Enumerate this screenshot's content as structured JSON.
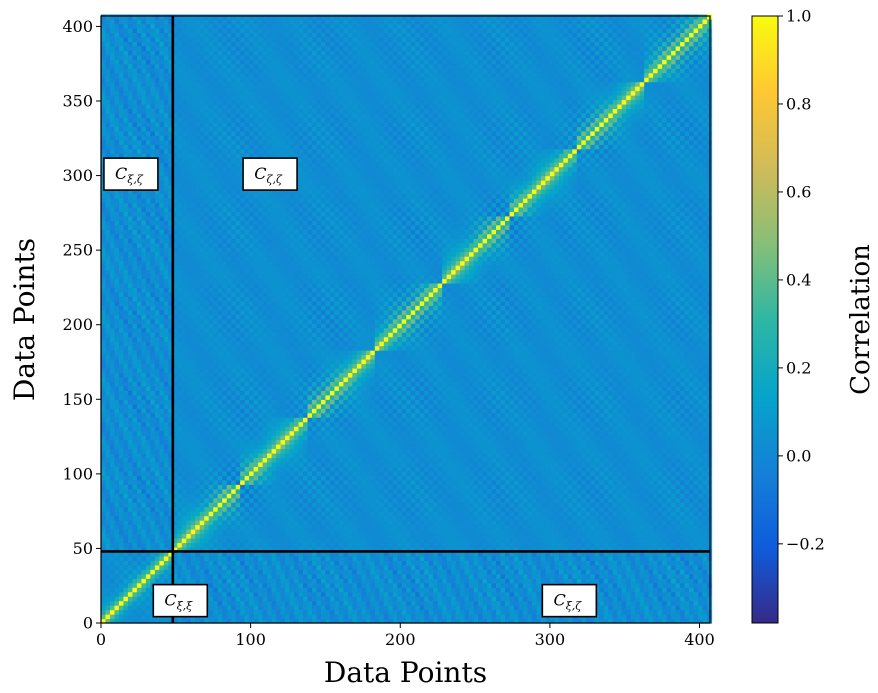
{
  "chart_data": {
    "type": "heatmap",
    "title": "",
    "xlabel": "Data Points",
    "ylabel": "Data Points",
    "colorbar_label": "Correlation",
    "xlim": [
      0,
      407
    ],
    "ylim": [
      0,
      407
    ],
    "x_ticks": [
      "0",
      "100",
      "200",
      "300",
      "400"
    ],
    "x_tick_values": [
      0,
      100,
      200,
      300,
      400
    ],
    "y_ticks": [
      "0",
      "50",
      "100",
      "150",
      "200",
      "250",
      "300",
      "350",
      "400"
    ],
    "y_tick_values": [
      0,
      50,
      100,
      150,
      200,
      250,
      300,
      350,
      400
    ],
    "color_range": [
      -0.38,
      1.0
    ],
    "colorbar_ticks": [
      "−0.2",
      "0.0",
      "0.2",
      "0.4",
      "0.6",
      "0.8",
      "1.0"
    ],
    "colorbar_tick_values": [
      -0.2,
      0.0,
      0.2,
      0.4,
      0.6,
      0.8,
      1.0
    ],
    "colormap": "parula",
    "colormap_stops": [
      "#352a87",
      "#0f5cdd",
      "#1481d6",
      "#06a4ca",
      "#2eb7a4",
      "#87bf77",
      "#d1bb59",
      "#fec832",
      "#f9fb0e"
    ],
    "divider_lines": {
      "x": 48,
      "y": 48,
      "color": "#000000"
    },
    "block_boundaries": [
      48,
      93,
      138,
      183,
      228,
      273,
      318,
      363,
      407
    ],
    "annotations": [
      {
        "id": "c-xi-zeta-left",
        "base": "C",
        "sub": "ξ,ζ",
        "x": 20,
        "y": 301
      },
      {
        "id": "c-zeta-zeta",
        "base": "C",
        "sub": "ζ,ζ",
        "x": 113,
        "y": 301
      },
      {
        "id": "c-xi-xi",
        "base": "C",
        "sub": "ξ,ξ",
        "x": 53,
        "y": 15
      },
      {
        "id": "c-xi-zeta-bottom",
        "base": "C",
        "sub": "ξ,ζ",
        "x": 313,
        "y": 15
      }
    ]
  }
}
